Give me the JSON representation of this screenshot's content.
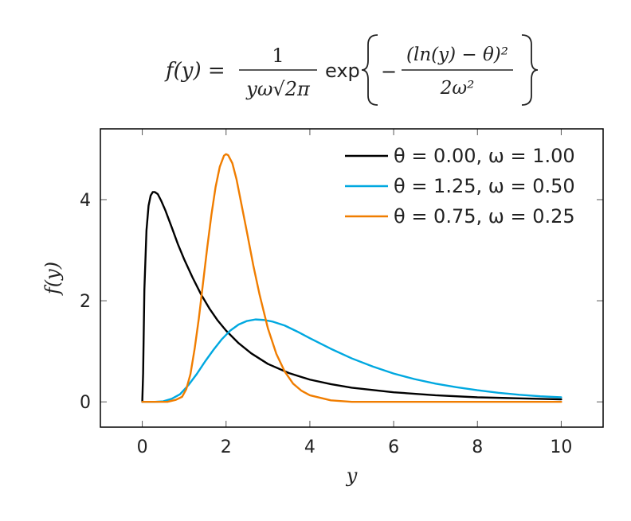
{
  "formula": {
    "lhs": "f(y) =",
    "numerator": "1",
    "denominator": "yω√2π",
    "exp": "exp",
    "minus": "−",
    "inner_numerator": "(ln(y) − θ)²",
    "inner_denominator": "2ω²"
  },
  "chart_data": {
    "type": "line",
    "xlabel": "y",
    "ylabel": "f(y)",
    "xlim": [
      -1,
      11
    ],
    "ylim": [
      -0.5,
      5.4
    ],
    "xticks": [
      0,
      2,
      4,
      6,
      8,
      10
    ],
    "yticks": [
      0,
      2,
      4
    ],
    "grid": false,
    "legend_position": "top-right",
    "series": [
      {
        "name": "θ = 0.00, ω = 1.00",
        "color": "#000000",
        "points": [
          [
            0,
            0
          ],
          [
            0.02,
            0.56
          ],
          [
            0.05,
            2.22
          ],
          [
            0.1,
            3.39
          ],
          [
            0.15,
            3.88
          ],
          [
            0.2,
            4.08
          ],
          [
            0.25,
            4.15
          ],
          [
            0.3,
            4.15
          ],
          [
            0.37,
            4.11
          ],
          [
            0.45,
            3.98
          ],
          [
            0.55,
            3.79
          ],
          [
            0.7,
            3.46
          ],
          [
            0.85,
            3.12
          ],
          [
            1.0,
            2.82
          ],
          [
            1.2,
            2.46
          ],
          [
            1.4,
            2.13
          ],
          [
            1.6,
            1.85
          ],
          [
            1.8,
            1.61
          ],
          [
            2.0,
            1.41
          ],
          [
            2.3,
            1.16
          ],
          [
            2.6,
            0.96
          ],
          [
            3.0,
            0.75
          ],
          [
            3.5,
            0.57
          ],
          [
            4.0,
            0.44
          ],
          [
            4.5,
            0.35
          ],
          [
            5.0,
            0.28
          ],
          [
            6.0,
            0.19
          ],
          [
            7.0,
            0.13
          ],
          [
            8.0,
            0.09
          ],
          [
            9.0,
            0.07
          ],
          [
            10.0,
            0.05
          ]
        ]
      },
      {
        "name": "θ = 1.25, ω = 0.50",
        "color": "#00a8e0",
        "points": [
          [
            0,
            0
          ],
          [
            0.3,
            0.0
          ],
          [
            0.5,
            0.01
          ],
          [
            0.7,
            0.06
          ],
          [
            0.9,
            0.15
          ],
          [
            1.1,
            0.33
          ],
          [
            1.3,
            0.55
          ],
          [
            1.5,
            0.8
          ],
          [
            1.7,
            1.03
          ],
          [
            1.9,
            1.24
          ],
          [
            2.1,
            1.41
          ],
          [
            2.3,
            1.53
          ],
          [
            2.5,
            1.6
          ],
          [
            2.7,
            1.63
          ],
          [
            2.9,
            1.62
          ],
          [
            3.1,
            1.59
          ],
          [
            3.4,
            1.51
          ],
          [
            3.7,
            1.39
          ],
          [
            4.0,
            1.26
          ],
          [
            4.5,
            1.05
          ],
          [
            5.0,
            0.86
          ],
          [
            5.5,
            0.7
          ],
          [
            6.0,
            0.56
          ],
          [
            6.5,
            0.45
          ],
          [
            7.0,
            0.36
          ],
          [
            7.5,
            0.29
          ],
          [
            8.0,
            0.23
          ],
          [
            8.5,
            0.18
          ],
          [
            9.0,
            0.14
          ],
          [
            9.5,
            0.11
          ],
          [
            10.0,
            0.09
          ]
        ]
      },
      {
        "name": "θ = 0.75, ω = 0.25",
        "color": "#f07d00",
        "points": [
          [
            0,
            0
          ],
          [
            0.6,
            0.0
          ],
          [
            0.8,
            0.04
          ],
          [
            0.95,
            0.1
          ],
          [
            1.05,
            0.25
          ],
          [
            1.15,
            0.55
          ],
          [
            1.25,
            1.05
          ],
          [
            1.35,
            1.65
          ],
          [
            1.45,
            2.35
          ],
          [
            1.55,
            3.05
          ],
          [
            1.65,
            3.7
          ],
          [
            1.75,
            4.25
          ],
          [
            1.85,
            4.65
          ],
          [
            1.95,
            4.87
          ],
          [
            2.0,
            4.9
          ],
          [
            2.05,
            4.88
          ],
          [
            2.15,
            4.72
          ],
          [
            2.25,
            4.4
          ],
          [
            2.35,
            3.98
          ],
          [
            2.5,
            3.35
          ],
          [
            2.65,
            2.7
          ],
          [
            2.8,
            2.12
          ],
          [
            3.0,
            1.45
          ],
          [
            3.2,
            0.95
          ],
          [
            3.4,
            0.6
          ],
          [
            3.6,
            0.36
          ],
          [
            3.8,
            0.22
          ],
          [
            4.0,
            0.13
          ],
          [
            4.5,
            0.03
          ],
          [
            5.0,
            0.0
          ],
          [
            10.0,
            0.0
          ]
        ]
      }
    ]
  }
}
